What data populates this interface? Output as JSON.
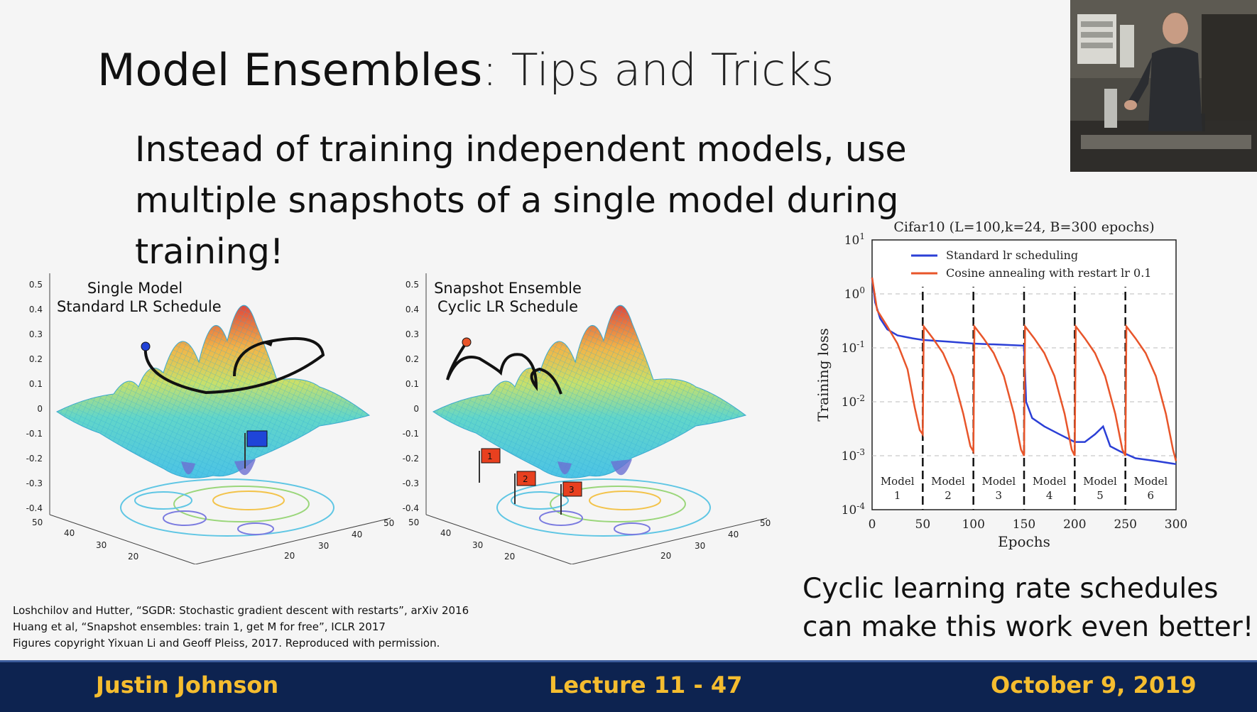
{
  "slide": {
    "title_bold": "Model Ensembles",
    "title_rest": ": Tips and Tricks",
    "subtitle": "Instead of training independent models, use multiple snapshots of a single model during training!",
    "note_line1": "Cyclic learning rate schedules",
    "note_line2": "can make this work even better!",
    "citations": [
      "Loshchilov and Hutter, “SGDR: Stochastic gradient descent with restarts”, arXiv 2016",
      "Huang et al, “Snapshot ensembles: train 1, get M for free”, ICLR 2017",
      "Figures copyright Yixuan Li and Geoff Pleiss, 2017. Reproduced with permission."
    ]
  },
  "footer": {
    "author": "Justin Johnson",
    "lecture": "Lecture 11 - 47",
    "date": "October 9, 2019"
  },
  "surface_left": {
    "label1": "Single Model",
    "label2": "Standard LR Schedule",
    "zticks": [
      "0.5",
      "0.4",
      "0.3",
      "0.2",
      "0.1",
      "0",
      "-0.1",
      "-0.2",
      "-0.3",
      "-0.4"
    ],
    "axticks_a": [
      "50",
      "40",
      "30",
      "20"
    ],
    "axticks_b": [
      "20",
      "30",
      "40",
      "50"
    ]
  },
  "surface_right": {
    "label1": "Snapshot Ensemble",
    "label2": "Cyclic LR Schedule",
    "flags": [
      "1",
      "2",
      "3"
    ],
    "zticks": [
      "0.5",
      "0.4",
      "0.3",
      "0.2",
      "0.1",
      "0",
      "-0.1",
      "-0.2",
      "-0.3",
      "-0.4"
    ],
    "axticks_a": [
      "50",
      "40",
      "30",
      "20"
    ],
    "axticks_b": [
      "20",
      "30",
      "40",
      "50"
    ]
  },
  "colors": {
    "footer_bg": "#0d2350",
    "footer_text": "#f5bd2f",
    "standard": "#2b3fd6",
    "cosine": "#e8552a"
  },
  "chart_data": {
    "type": "line",
    "title": "Cifar10 (L=100,k=24, B=300 epochs)",
    "xlabel": "Epochs",
    "ylabel": "Training loss",
    "xlim": [
      0,
      300
    ],
    "ylim_log10": [
      -4,
      1
    ],
    "yscale": "log",
    "xticks": [
      "0",
      "50",
      "100",
      "150",
      "200",
      "250",
      "300"
    ],
    "yticks": [
      "10^1",
      "10^0",
      "10^-1",
      "10^-2",
      "10^-3",
      "10^-4"
    ],
    "legend_position": "top-right",
    "restart_epochs": [
      50,
      100,
      150,
      200,
      250
    ],
    "model_labels": [
      "Model 1",
      "Model 2",
      "Model 3",
      "Model 4",
      "Model 5",
      "Model 6"
    ],
    "model_numbers": [
      "1",
      "2",
      "3",
      "4",
      "5",
      "6"
    ],
    "series": [
      {
        "name": "Standard lr scheduling",
        "color": "#2b3fd6",
        "x": [
          0,
          3,
          8,
          15,
          25,
          40,
          50,
          75,
          100,
          125,
          150,
          152,
          158,
          170,
          185,
          200,
          210,
          220,
          228,
          235,
          245,
          260,
          280,
          300
        ],
        "y": [
          2.0,
          0.7,
          0.35,
          0.22,
          0.17,
          0.15,
          0.14,
          0.13,
          0.12,
          0.115,
          0.11,
          0.01,
          0.005,
          0.0035,
          0.0025,
          0.0018,
          0.0018,
          0.0025,
          0.0035,
          0.0015,
          0.0012,
          0.0009,
          0.0008,
          0.0007
        ]
      },
      {
        "name": "Cosine annealing with restart lr 0.1",
        "color": "#e8552a",
        "x": [
          0,
          5,
          15,
          25,
          35,
          42,
          47,
          50,
          51,
          60,
          70,
          80,
          90,
          97,
          100,
          101,
          110,
          120,
          130,
          140,
          147,
          150,
          151,
          160,
          170,
          180,
          190,
          197,
          200,
          201,
          210,
          220,
          230,
          240,
          247,
          250,
          251,
          260,
          270,
          280,
          290,
          297,
          300
        ],
        "y": [
          2.0,
          0.5,
          0.25,
          0.12,
          0.04,
          0.008,
          0.003,
          0.0025,
          0.25,
          0.15,
          0.08,
          0.03,
          0.006,
          0.0015,
          0.0012,
          0.25,
          0.15,
          0.08,
          0.03,
          0.006,
          0.0013,
          0.001,
          0.25,
          0.15,
          0.08,
          0.03,
          0.006,
          0.0013,
          0.001,
          0.25,
          0.15,
          0.08,
          0.03,
          0.006,
          0.0013,
          0.001,
          0.25,
          0.15,
          0.08,
          0.03,
          0.006,
          0.0013,
          0.0008
        ]
      }
    ]
  }
}
